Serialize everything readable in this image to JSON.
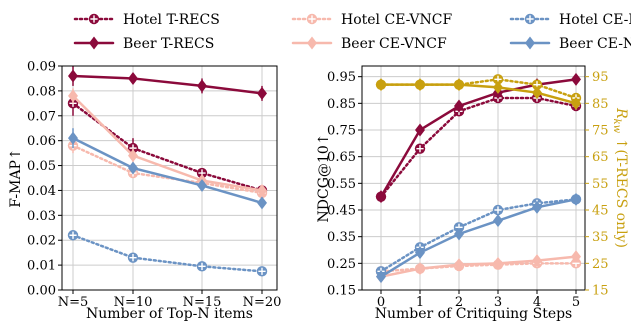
{
  "legend": [
    {
      "name": "Hotel T-RECS",
      "color": "#8b0a3b",
      "dashed": true,
      "marker": "plus-circle"
    },
    {
      "name": "Beer T-RECS",
      "color": "#8b0a3b",
      "dashed": false,
      "marker": "diamond"
    },
    {
      "name": "Hotel CE-VNCF",
      "color": "#f7b9ad",
      "dashed": true,
      "marker": "plus-circle"
    },
    {
      "name": "Beer CE-VNCF",
      "color": "#f7b9ad",
      "dashed": false,
      "marker": "diamond"
    },
    {
      "name": "Hotel CE-NCF",
      "color": "#6b93c4",
      "dashed": true,
      "marker": "plus-circle"
    },
    {
      "name": "Beer CE-NCF",
      "color": "#6b93c4",
      "dashed": false,
      "marker": "diamond"
    }
  ],
  "chart_data": [
    {
      "type": "line",
      "xlabel": "Number of Top-N items",
      "ylabel": "F-MAP↑",
      "categories": [
        "N=5",
        "N=10",
        "N=15",
        "N=20"
      ],
      "ylim": [
        0,
        0.09
      ],
      "yticks": [
        "0.00",
        "0.01",
        "0.02",
        "0.03",
        "0.04",
        "0.05",
        "0.06",
        "0.07",
        "0.08",
        "0.09"
      ],
      "grid": true,
      "series": [
        {
          "name": "Hotel T-RECS",
          "values": [
            0.075,
            0.057,
            0.047,
            0.04
          ],
          "err": [
            0.005,
            0.004,
            0.002,
            0.002
          ]
        },
        {
          "name": "Beer T-RECS",
          "values": [
            0.086,
            0.085,
            0.082,
            0.079
          ],
          "err": [
            0.004,
            0.002,
            0.003,
            0.003
          ]
        },
        {
          "name": "Hotel CE-VNCF",
          "values": [
            0.058,
            0.047,
            0.043,
            0.039
          ],
          "err": [
            0.003,
            0.002,
            0.002,
            0.001
          ]
        },
        {
          "name": "Beer CE-VNCF",
          "values": [
            0.078,
            0.054,
            0.044,
            0.04
          ],
          "err": [
            0.003,
            0.003,
            0.002,
            0.001
          ]
        },
        {
          "name": "Hotel CE-NCF",
          "values": [
            0.022,
            0.013,
            0.0095,
            0.0075
          ],
          "err": [
            0.002,
            0.0015,
            0.001,
            0.001
          ]
        },
        {
          "name": "Beer CE-NCF",
          "values": [
            0.061,
            0.049,
            0.042,
            0.035
          ],
          "err": [
            0.004,
            0.002,
            0.002,
            0.002
          ]
        }
      ]
    },
    {
      "type": "line",
      "xlabel": "Number of Critiquing Steps",
      "ylabel": "NDCG@10↑",
      "ylabel_right": "R_kw ↑(T-RECS only)",
      "x": [
        0,
        1,
        2,
        3,
        4,
        5
      ],
      "ylim": [
        0.15,
        0.99
      ],
      "yticks": [
        "0.15",
        "0.25",
        "0.35",
        "0.45",
        "0.55",
        "0.65",
        "0.75",
        "0.85",
        "0.95"
      ],
      "ylim_right": [
        15,
        99
      ],
      "yticks_right": [
        "15",
        "25",
        "35",
        "45",
        "55",
        "65",
        "75",
        "85",
        "95"
      ],
      "grid": true,
      "series": [
        {
          "name": "Hotel T-RECS",
          "values": [
            0.5,
            0.68,
            0.82,
            0.87,
            0.87,
            0.84
          ]
        },
        {
          "name": "Beer T-RECS",
          "values": [
            0.5,
            0.75,
            0.84,
            0.89,
            0.92,
            0.94
          ]
        },
        {
          "name": "Hotel CE-VNCF",
          "values": [
            0.22,
            0.23,
            0.24,
            0.245,
            0.25,
            0.25
          ]
        },
        {
          "name": "Beer CE-VNCF",
          "values": [
            0.2,
            0.23,
            0.245,
            0.25,
            0.26,
            0.275
          ]
        },
        {
          "name": "Hotel CE-NCF",
          "values": [
            0.22,
            0.31,
            0.385,
            0.45,
            0.475,
            0.49
          ]
        },
        {
          "name": "Beer CE-NCF",
          "values": [
            0.2,
            0.29,
            0.36,
            0.41,
            0.46,
            0.49
          ]
        },
        {
          "name": "Hotel T-RECS",
          "axis": "right",
          "color": "#c8a010",
          "dashed": true,
          "values": [
            92,
            92,
            92,
            94,
            92,
            87
          ]
        },
        {
          "name": "Beer T-RECS",
          "axis": "right",
          "color": "#c8a010",
          "dashed": false,
          "values": [
            92,
            92,
            92,
            91,
            89,
            85
          ]
        }
      ]
    }
  ]
}
